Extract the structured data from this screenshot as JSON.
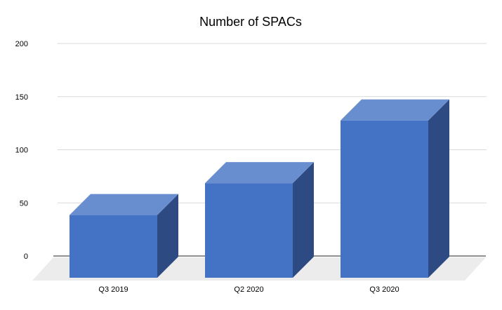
{
  "chart_data": {
    "type": "bar",
    "title": "Number of SPACs",
    "categories": [
      "Q3 2019",
      "Q2 2020",
      "Q3 2020"
    ],
    "values": [
      59,
      89,
      148
    ],
    "ylim": [
      0,
      200
    ],
    "yticks": [
      0,
      50,
      100,
      150,
      200
    ],
    "ytick_labels": [
      "0",
      "50",
      "100",
      "150",
      "200"
    ],
    "xlabel": "",
    "ylabel": "",
    "grid": true,
    "style": "3d-column",
    "colors": {
      "bar_front": "#4472C4",
      "bar_top": "#698ED0",
      "bar_side": "#2E4A82",
      "grid": "#D9D9D9",
      "floor": "#ECECEC"
    }
  }
}
